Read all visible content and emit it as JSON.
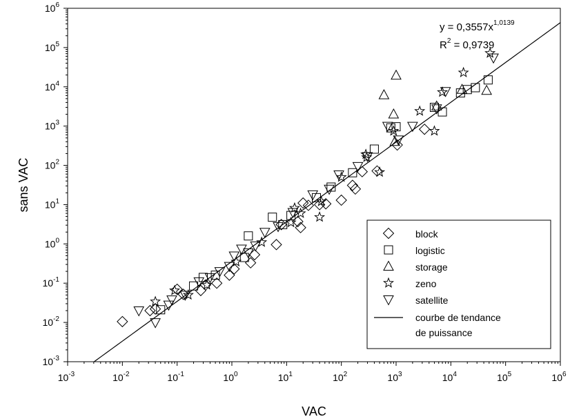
{
  "chart_data": {
    "type": "scatter",
    "title": "",
    "xlabel": "VAC",
    "ylabel": "sans VAC",
    "xscale": "log",
    "yscale": "log",
    "xlim": [
      0.001,
      1000000
    ],
    "ylim": [
      0.001,
      1000000
    ],
    "grid": false,
    "legend_position": "bottom-right",
    "x_ticks": [
      {
        "base": "10",
        "exp": "-3"
      },
      {
        "base": "10",
        "exp": "-2"
      },
      {
        "base": "10",
        "exp": "-1"
      },
      {
        "base": "10",
        "exp": "0"
      },
      {
        "base": "10",
        "exp": "1"
      },
      {
        "base": "10",
        "exp": "2"
      },
      {
        "base": "10",
        "exp": "3"
      },
      {
        "base": "10",
        "exp": "4"
      },
      {
        "base": "10",
        "exp": "5"
      },
      {
        "base": "10",
        "exp": "6"
      }
    ],
    "y_ticks": [
      {
        "base": "10",
        "exp": "-3"
      },
      {
        "base": "10",
        "exp": "-2"
      },
      {
        "base": "10",
        "exp": "-1"
      },
      {
        "base": "10",
        "exp": "0"
      },
      {
        "base": "10",
        "exp": "1"
      },
      {
        "base": "10",
        "exp": "2"
      },
      {
        "base": "10",
        "exp": "3"
      },
      {
        "base": "10",
        "exp": "4"
      },
      {
        "base": "10",
        "exp": "5"
      },
      {
        "base": "10",
        "exp": "6"
      }
    ],
    "equation": {
      "line1_prefix": "y = 0,3557x",
      "line1_exp": "1,0139",
      "line2_prefix": "R",
      "line2_exp": "2",
      "line2_suffix": " = 0,9739"
    },
    "trendline": {
      "name": "courbe de tendance de puissance",
      "legend_lines": [
        "courbe de tendance",
        "de puissance"
      ],
      "coefficient": 0.3557,
      "exponent": 1.0139
    },
    "series": [
      {
        "name": "block",
        "marker": "diamond",
        "points": [
          [
            0.01,
            0.0105
          ],
          [
            0.032,
            0.02
          ],
          [
            0.04,
            0.022
          ],
          [
            0.1,
            0.07
          ],
          [
            0.13,
            0.052
          ],
          [
            0.27,
            0.065
          ],
          [
            0.33,
            0.09
          ],
          [
            0.53,
            0.1
          ],
          [
            0.9,
            0.16
          ],
          [
            1.1,
            0.23
          ],
          [
            2.2,
            0.33
          ],
          [
            2.6,
            0.53
          ],
          [
            6.5,
            0.96
          ],
          [
            8,
            3.1
          ],
          [
            16,
            3.7
          ],
          [
            18,
            2.6
          ],
          [
            20,
            11
          ],
          [
            25,
            9.6
          ],
          [
            40,
            10
          ],
          [
            52,
            10.5
          ],
          [
            100,
            13
          ],
          [
            160,
            31
          ],
          [
            180,
            25
          ],
          [
            240,
            69
          ],
          [
            450,
            72
          ],
          [
            1050,
            330
          ],
          [
            3300,
            830
          ]
        ]
      },
      {
        "name": "logistic",
        "marker": "square",
        "points": [
          [
            0.05,
            0.021
          ],
          [
            0.2,
            0.085
          ],
          [
            0.3,
            0.14
          ],
          [
            0.5,
            0.16
          ],
          [
            1.7,
            0.45
          ],
          [
            2,
            1.6
          ],
          [
            5.5,
            4.8
          ],
          [
            8.5,
            3.1
          ],
          [
            12,
            5.3
          ],
          [
            35,
            15
          ],
          [
            65,
            28
          ],
          [
            160,
            65
          ],
          [
            400,
            260
          ],
          [
            800,
            900
          ],
          [
            1000,
            960
          ],
          [
            5000,
            3000
          ],
          [
            7000,
            2300
          ],
          [
            15000,
            7000
          ],
          [
            20000,
            8500
          ],
          [
            28000,
            9500
          ],
          [
            48000,
            15000
          ]
        ]
      },
      {
        "name": "storage",
        "marker": "triangle-up",
        "points": [
          [
            600,
            6200
          ],
          [
            900,
            2000
          ],
          [
            950,
            400
          ],
          [
            1000,
            19500
          ],
          [
            5500,
            3200
          ],
          [
            16000,
            8500
          ],
          [
            45000,
            8000
          ]
        ]
      },
      {
        "name": "zeno",
        "marker": "star",
        "points": [
          [
            0.04,
            0.034
          ],
          [
            0.09,
            0.065
          ],
          [
            0.16,
            0.05
          ],
          [
            0.35,
            0.09
          ],
          [
            1.2,
            0.35
          ],
          [
            3.5,
            1.1
          ],
          [
            12,
            3.5
          ],
          [
            14,
            8.2
          ],
          [
            18,
            6
          ],
          [
            40,
            4.8
          ],
          [
            43,
            12
          ],
          [
            100,
            50
          ],
          [
            280,
            190
          ],
          [
            290,
            160
          ],
          [
            500,
            67
          ],
          [
            900,
            750
          ],
          [
            2700,
            2400
          ],
          [
            5000,
            750
          ],
          [
            7000,
            7300
          ],
          [
            17000,
            23000
          ],
          [
            52000,
            72000
          ]
        ]
      },
      {
        "name": "satellite",
        "marker": "triangle-down",
        "points": [
          [
            0.02,
            0.02
          ],
          [
            0.04,
            0.01
          ],
          [
            0.07,
            0.028
          ],
          [
            0.08,
            0.038
          ],
          [
            0.14,
            0.05
          ],
          [
            0.25,
            0.11
          ],
          [
            0.4,
            0.14
          ],
          [
            0.6,
            0.2
          ],
          [
            0.9,
            0.27
          ],
          [
            1.1,
            0.5
          ],
          [
            1.5,
            0.75
          ],
          [
            2,
            0.6
          ],
          [
            2.7,
            0.9
          ],
          [
            4,
            2
          ],
          [
            7,
            2.8
          ],
          [
            13,
            6.4
          ],
          [
            30,
            18
          ],
          [
            60,
            25
          ],
          [
            90,
            58
          ],
          [
            200,
            95
          ],
          [
            300,
            170
          ],
          [
            700,
            1000
          ],
          [
            1100,
            450
          ],
          [
            2000,
            1000
          ],
          [
            5500,
            2800
          ],
          [
            8000,
            7700
          ],
          [
            60000,
            55000
          ]
        ]
      }
    ]
  }
}
